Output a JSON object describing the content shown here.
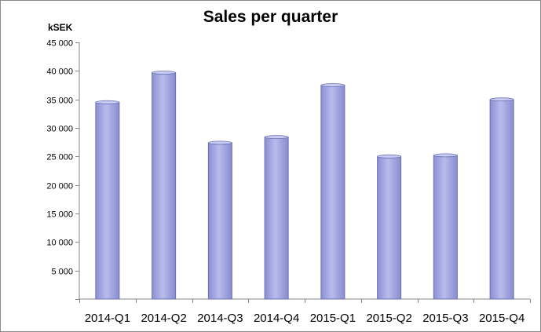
{
  "chart_data": {
    "type": "bar",
    "title": "Sales per quarter",
    "ylabel": "kSEK",
    "xlabel": "",
    "categories": [
      "2014-Q1",
      "2014-Q2",
      "2014-Q3",
      "2014-Q4",
      "2015-Q1",
      "2015-Q2",
      "2015-Q3",
      "2015-Q4"
    ],
    "values": [
      34500,
      39700,
      27400,
      28400,
      37500,
      25000,
      25200,
      35000
    ],
    "ylim": [
      0,
      45000
    ],
    "yticks": [
      0,
      5000,
      10000,
      15000,
      20000,
      25000,
      30000,
      35000,
      40000,
      45000
    ],
    "ytick_labels": [
      "",
      "5 000",
      "10 000",
      "15 000",
      "20 000",
      "25 000",
      "30 000",
      "35 000",
      "40 000",
      "45 000"
    ],
    "grid": false,
    "legend": "none",
    "bar_color": "#9da2dc",
    "bar_edge_color": "#6b70b3"
  }
}
